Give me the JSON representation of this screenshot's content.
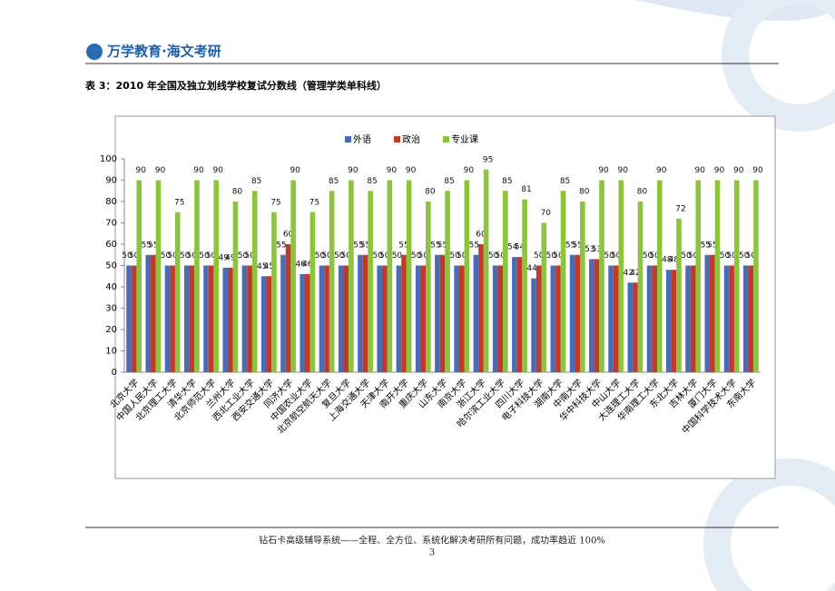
{
  "header": {
    "logo": "万学教育·海文考研"
  },
  "caption": "表 3：2010 年全国及独立划线学校复试分数线（管理学类单科线）",
  "chart_data": {
    "type": "bar",
    "categories": [
      "北京大学",
      "中国人民大学",
      "北京理工大学",
      "清华大学",
      "北京师范大学",
      "兰州大学",
      "西北工业大学",
      "西安交通大学",
      "同济大学",
      "中国农业大学",
      "北京航空航天大学",
      "复旦大学",
      "上海交通大学",
      "天津大学",
      "南开大学",
      "重庆大学",
      "山东大学",
      "南京大学",
      "浙江大学",
      "哈尔滨工业大学",
      "四川大学",
      "电子科技大学",
      "湖南大学",
      "中南大学",
      "华中科技大学",
      "中山大学",
      "大连理工大学",
      "华南理工大学",
      "东北大学",
      "吉林大学",
      "厦门大学",
      "中国科学技术大学",
      "东南大学"
    ],
    "series": [
      {
        "name": "外语",
        "color": "#4a6cb5",
        "values": [
          50,
          55,
          50,
          50,
          50,
          49,
          50,
          45,
          55,
          46,
          50,
          50,
          55,
          50,
          50,
          50,
          55,
          50,
          55,
          50,
          54,
          44,
          50,
          55,
          53,
          50,
          42,
          50,
          48,
          50,
          55,
          50,
          50
        ]
      },
      {
        "name": "政治",
        "color": "#c0392b",
        "values": [
          50,
          55,
          50,
          50,
          50,
          49,
          50,
          45,
          60,
          46,
          50,
          50,
          55,
          50,
          55,
          50,
          55,
          50,
          60,
          50,
          54,
          50,
          50,
          55,
          53,
          50,
          42,
          50,
          48,
          50,
          55,
          50,
          50
        ]
      },
      {
        "name": "专业课",
        "color": "#8cc43c",
        "values": [
          90,
          90,
          75,
          90,
          90,
          80,
          85,
          75,
          90,
          75,
          85,
          90,
          85,
          90,
          90,
          80,
          85,
          90,
          95,
          85,
          81,
          70,
          85,
          80,
          90,
          90,
          80,
          90,
          72,
          90,
          90,
          90,
          90
        ]
      }
    ],
    "ylim": [
      0,
      100
    ],
    "yticks": [
      0,
      10,
      20,
      30,
      40,
      50,
      60,
      70,
      80,
      90,
      100
    ],
    "grid": false,
    "legend": "top"
  },
  "footer": {
    "text": "钻石卡高级辅导系统——全程、全方位、系统化解决考研所有问题，成功率趋近 100%",
    "page": "3"
  }
}
